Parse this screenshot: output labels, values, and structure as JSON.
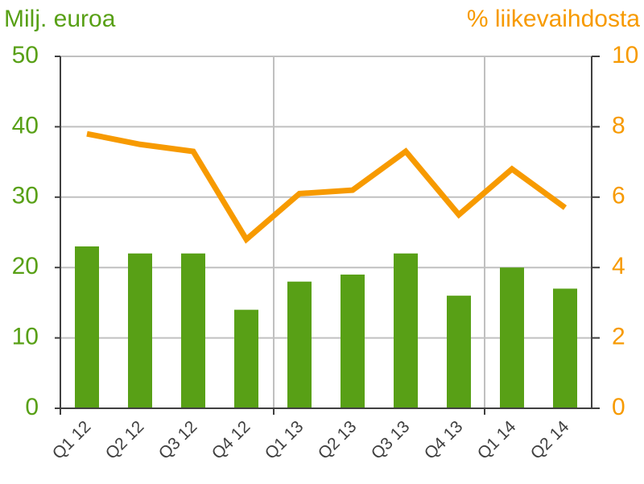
{
  "chart_data": {
    "type": "bar-line",
    "y_label": "Milj. euroa",
    "y2_label": "% liikevaihdosta",
    "categories": [
      "Q1 12",
      "Q2 12",
      "Q3 12",
      "Q4 12",
      "Q1 13",
      "Q2 13",
      "Q3 13",
      "Q4 13",
      "Q1 14",
      "Q2 14"
    ],
    "series": [
      {
        "type": "bar",
        "color": "#58a016",
        "values": [
          23,
          22,
          22,
          14,
          18,
          19,
          22,
          16,
          20,
          17
        ]
      },
      {
        "type": "line",
        "axis": "y2",
        "color": "#f79a00",
        "values": [
          7.8,
          7.5,
          7.3,
          4.8,
          6.1,
          6.2,
          7.3,
          5.5,
          6.8,
          5.7
        ]
      }
    ],
    "ylim": [
      0,
      50
    ],
    "yticks": [
      0,
      10,
      20,
      30,
      40,
      50
    ],
    "y2lim": [
      0,
      10
    ],
    "y2ticks": [
      0,
      2,
      4,
      6,
      8,
      10
    ],
    "grid": true
  }
}
